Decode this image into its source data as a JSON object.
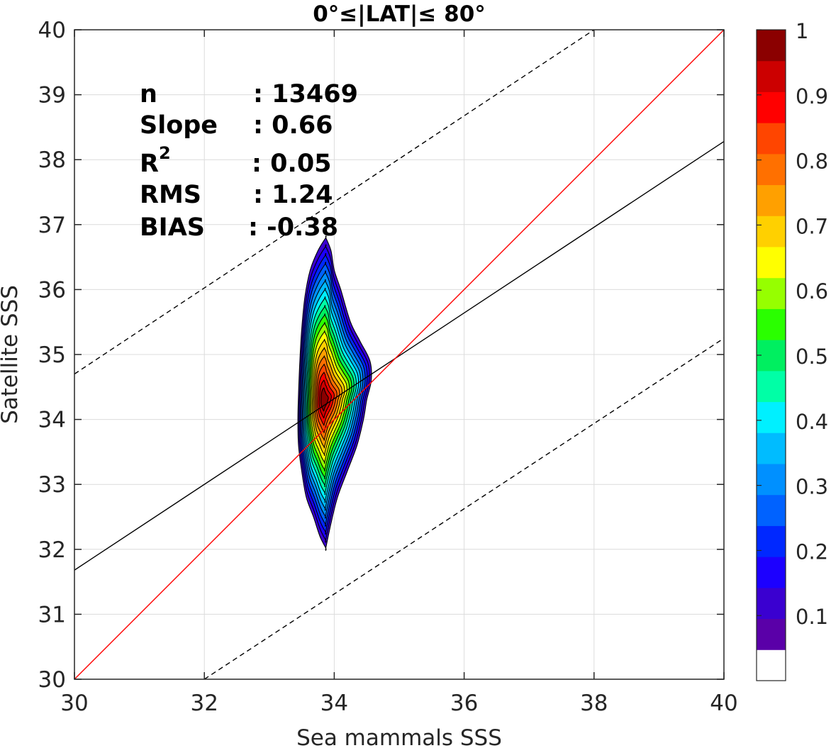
{
  "chart_data": {
    "type": "contour",
    "title": "0°≤|LAT|≤ 80°",
    "xlabel": "Sea mammals  SSS",
    "ylabel": "Satellite SSS",
    "xlim": [
      30,
      40
    ],
    "ylim": [
      30,
      40
    ],
    "x_ticks": [
      "30",
      "32",
      "34",
      "36",
      "38",
      "40"
    ],
    "y_ticks": [
      "30",
      "31",
      "32",
      "33",
      "34",
      "35",
      "36",
      "37",
      "38",
      "39",
      "40"
    ],
    "grid": true,
    "stats": [
      {
        "label": "n",
        "value": ": 13469"
      },
      {
        "label": "Slope",
        "value": ": 0.66"
      },
      {
        "label": "R",
        "superscript": "2",
        "value": ": 0.05"
      },
      {
        "label": "RMS",
        "value": ": 1.24"
      },
      {
        "label": "BIAS",
        "value": ": -0.38"
      }
    ],
    "lines": {
      "one_to_one": {
        "from": [
          30,
          30
        ],
        "to": [
          40,
          40
        ],
        "color": "#ff0000"
      },
      "regression": {
        "from": [
          30,
          31.68
        ],
        "to": [
          40,
          38.28
        ],
        "color": "#000000"
      },
      "upper_dashed": {
        "from": [
          30,
          34.7
        ],
        "to": [
          38,
          40
        ],
        "color": "#000000",
        "style": "dashed"
      },
      "lower_dashed": {
        "from": [
          32,
          30
        ],
        "to": [
          40,
          35.25
        ],
        "color": "#000000",
        "style": "dashed"
      }
    },
    "density": {
      "center": [
        33.87,
        34.3
      ],
      "levels": [
        0.05,
        0.1,
        0.15,
        0.2,
        0.25,
        0.3,
        0.35,
        0.4,
        0.45,
        0.5,
        0.55,
        0.6,
        0.65,
        0.7,
        0.75,
        0.8,
        0.85,
        0.9,
        0.95
      ],
      "outer_contour": {
        "y_top": 36.8,
        "y_bottom": 32.02,
        "right_x": [
          [
            36.8,
            33.87
          ],
          [
            36.6,
            33.95
          ],
          [
            36.3,
            34.0
          ],
          [
            36.0,
            34.1
          ],
          [
            35.5,
            34.25
          ],
          [
            35.2,
            34.4
          ],
          [
            34.9,
            34.55
          ],
          [
            34.6,
            34.57
          ],
          [
            34.3,
            34.5
          ],
          [
            34.0,
            34.45
          ],
          [
            33.6,
            34.35
          ],
          [
            33.2,
            34.2
          ],
          [
            32.8,
            34.05
          ],
          [
            32.4,
            33.95
          ],
          [
            32.02,
            33.87
          ]
        ],
        "left_x": [
          [
            36.8,
            33.87
          ],
          [
            36.6,
            33.75
          ],
          [
            36.3,
            33.63
          ],
          [
            35.9,
            33.55
          ],
          [
            35.4,
            33.5
          ],
          [
            34.9,
            33.47
          ],
          [
            34.4,
            33.45
          ],
          [
            34.0,
            33.44
          ],
          [
            33.6,
            33.45
          ],
          [
            33.2,
            33.5
          ],
          [
            32.8,
            33.57
          ],
          [
            32.5,
            33.68
          ],
          [
            32.2,
            33.78
          ],
          [
            32.02,
            33.87
          ]
        ]
      },
      "skew_right": 0.55
    },
    "colorbar": {
      "range": [
        0,
        1
      ],
      "ticks": [
        "0.1",
        "0.2",
        "0.3",
        "0.4",
        "0.5",
        "0.6",
        "0.7",
        "0.8",
        "0.9",
        "1"
      ],
      "tick_values": [
        0.1,
        0.2,
        0.3,
        0.4,
        0.5,
        0.6,
        0.7,
        0.8,
        0.9,
        1.0
      ],
      "colors": [
        "#ffffff",
        "#5a00a8",
        "#3a00d0",
        "#1c00ff",
        "#0028ff",
        "#0062ff",
        "#0090ff",
        "#00bcff",
        "#00f0ff",
        "#00ffa6",
        "#00ef60",
        "#2aff00",
        "#96ff00",
        "#ffff00",
        "#ffd000",
        "#ffa000",
        "#ff7000",
        "#ff4500",
        "#ff0000",
        "#cc0000",
        "#8b0000"
      ]
    }
  }
}
